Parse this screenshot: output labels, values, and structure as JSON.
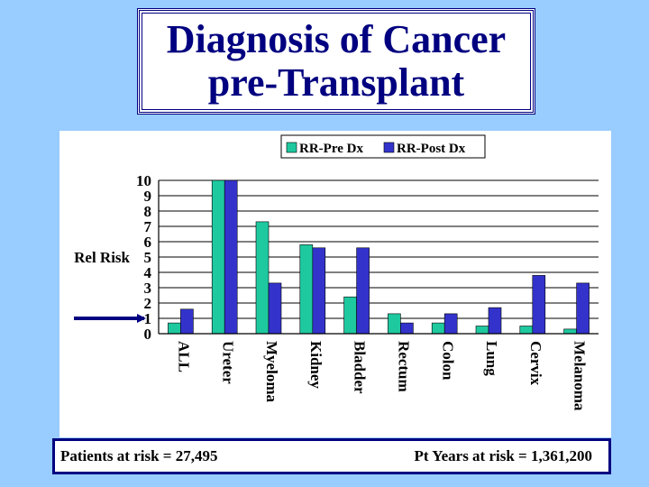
{
  "title": {
    "line1": "Diagnosis of Cancer",
    "line2": "pre-Transplant"
  },
  "footer": {
    "left": "Patients at risk = 27,495",
    "right": "Pt Years at risk = 1,361,200"
  },
  "chart_data": {
    "type": "bar",
    "title": "",
    "xlabel": "",
    "ylabel": "Rel Risk",
    "ylim": [
      0,
      10
    ],
    "yticks": [
      0,
      1,
      2,
      3,
      4,
      5,
      6,
      7,
      8,
      9,
      10
    ],
    "grid": true,
    "legend_position": "top",
    "categories": [
      "ALL",
      "Ureter",
      "Myeloma",
      "Kidney",
      "Bladder",
      "Rectum",
      "Colon",
      "Lung",
      "Cervix",
      "Melanoma"
    ],
    "series": [
      {
        "name": "RR-Pre Dx",
        "color": "#1fc9a0",
        "values": [
          0.7,
          10,
          7.3,
          5.8,
          2.4,
          1.3,
          0.7,
          0.5,
          0.5,
          0.3
        ]
      },
      {
        "name": "RR-Post Dx",
        "color": "#3333cc",
        "values": [
          1.6,
          10,
          3.3,
          5.6,
          5.6,
          0.7,
          1.3,
          1.7,
          3.8,
          3.3
        ]
      }
    ],
    "annotation_arrow_at": 1
  }
}
